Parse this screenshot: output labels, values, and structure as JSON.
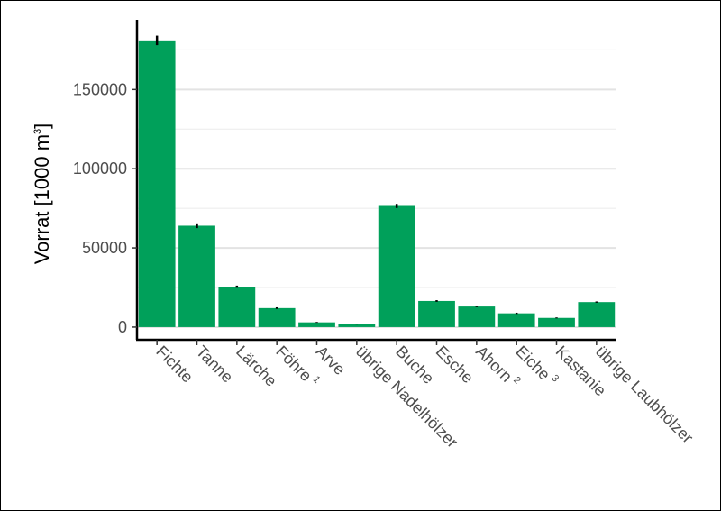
{
  "chart_data": {
    "type": "bar",
    "ylabel": {
      "main": "Vorrat [1000 m",
      "sup": "3",
      "end": "]"
    },
    "ylim": [
      -8000,
      194000
    ],
    "yticks": [
      0,
      50000,
      100000,
      150000
    ],
    "ytick_labels": [
      "0",
      "50000",
      "100000",
      "150000"
    ],
    "minor_gridlines": [
      25000,
      75000,
      125000,
      175000
    ],
    "grid": true,
    "bar_color": "#00a05a",
    "categories": [
      {
        "label": "Fichte",
        "sup": ""
      },
      {
        "label": "Tanne",
        "sup": ""
      },
      {
        "label": "Lärche",
        "sup": ""
      },
      {
        "label": "Föhre",
        "sup": "1"
      },
      {
        "label": "Arve",
        "sup": ""
      },
      {
        "label": "übrige Nadelhölzer",
        "sup": ""
      },
      {
        "label": "Buche",
        "sup": ""
      },
      {
        "label": "Esche",
        "sup": ""
      },
      {
        "label": "Ahorn",
        "sup": "2"
      },
      {
        "label": "Eiche",
        "sup": "3"
      },
      {
        "label": "Kastanie",
        "sup": ""
      },
      {
        "label": "übrige Laubhölzer",
        "sup": ""
      }
    ],
    "values": [
      181000,
      64000,
      25500,
      12000,
      3000,
      1800,
      76500,
      16500,
      13000,
      8700,
      5800,
      15800
    ],
    "error": [
      3000,
      1500,
      700,
      500,
      250,
      200,
      1300,
      500,
      400,
      400,
      300,
      400
    ]
  }
}
